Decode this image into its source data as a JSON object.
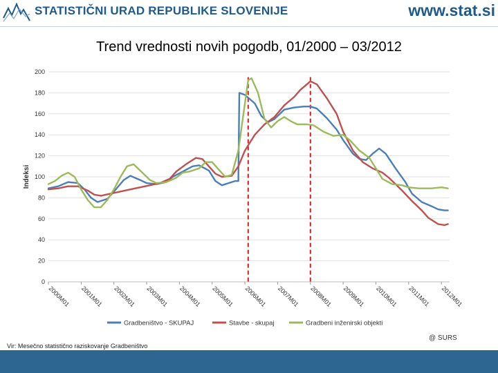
{
  "header": {
    "org_name": "STATISTIČNI URAD REPUBLIKE SLOVENIJE",
    "website": "www.stat.si",
    "logo_icon": "surs-logo-icon"
  },
  "chart_data": {
    "type": "line",
    "title": "Trend vrednosti novih pogodb, 01/2000 – 03/2012",
    "ylabel": "Indeksi",
    "xlabel": "",
    "ylim": [
      0,
      200
    ],
    "yticks": [
      0,
      20,
      40,
      60,
      80,
      100,
      120,
      140,
      160,
      180,
      200
    ],
    "x_tick_labels": [
      "2000M01",
      "2001M01",
      "2002M01",
      "2003M01",
      "2004M01",
      "2005M01",
      "2006M01",
      "2007M01",
      "2008M01",
      "2009M01",
      "2010M01",
      "2011M01",
      "2012M01"
    ],
    "x_range": [
      2000.0,
      2012.25
    ],
    "grid": true,
    "legend_position": "bottom",
    "reference_lines_x": [
      2006.1,
      2008.0
    ],
    "reference_line_color": "#d42020",
    "series": [
      {
        "name": "Gradbeništvo - SKUPAJ",
        "color": "#4a7ebb",
        "points": [
          [
            2000.0,
            89
          ],
          [
            2000.3,
            91
          ],
          [
            2000.6,
            95
          ],
          [
            2000.9,
            94
          ],
          [
            2001.1,
            88
          ],
          [
            2001.3,
            80
          ],
          [
            2001.5,
            76
          ],
          [
            2001.8,
            79
          ],
          [
            2002.0,
            86
          ],
          [
            2002.3,
            97
          ],
          [
            2002.5,
            101
          ],
          [
            2002.8,
            97
          ],
          [
            2003.0,
            94
          ],
          [
            2003.3,
            93
          ],
          [
            2003.6,
            95
          ],
          [
            2003.8,
            100
          ],
          [
            2004.1,
            105
          ],
          [
            2004.4,
            110
          ],
          [
            2004.6,
            111
          ],
          [
            2004.9,
            106
          ],
          [
            2005.1,
            96
          ],
          [
            2005.3,
            92
          ],
          [
            2005.5,
            94
          ],
          [
            2005.7,
            96
          ],
          [
            2005.8,
            96
          ],
          [
            2005.83,
            180
          ],
          [
            2006.0,
            178
          ],
          [
            2006.3,
            170
          ],
          [
            2006.5,
            158
          ],
          [
            2006.7,
            152
          ],
          [
            2006.9,
            155
          ],
          [
            2007.2,
            164
          ],
          [
            2007.5,
            166
          ],
          [
            2007.8,
            167
          ],
          [
            2008.0,
            167
          ],
          [
            2008.2,
            165
          ],
          [
            2008.5,
            156
          ],
          [
            2008.8,
            145
          ],
          [
            2009.0,
            135
          ],
          [
            2009.3,
            122
          ],
          [
            2009.5,
            117
          ],
          [
            2009.7,
            116
          ],
          [
            2009.9,
            122
          ],
          [
            2010.1,
            127
          ],
          [
            2010.3,
            122
          ],
          [
            2010.6,
            108
          ],
          [
            2010.9,
            95
          ],
          [
            2011.1,
            84
          ],
          [
            2011.4,
            76
          ],
          [
            2011.7,
            72
          ],
          [
            2011.9,
            69
          ],
          [
            2012.1,
            68
          ],
          [
            2012.2,
            68
          ]
        ]
      },
      {
        "name": "Stavbe - skupaj",
        "color": "#c0504d",
        "points": [
          [
            2000.0,
            88
          ],
          [
            2000.3,
            89
          ],
          [
            2000.6,
            91
          ],
          [
            2000.9,
            91
          ],
          [
            2001.2,
            87
          ],
          [
            2001.4,
            83
          ],
          [
            2001.6,
            82
          ],
          [
            2001.9,
            84
          ],
          [
            2002.2,
            86
          ],
          [
            2002.5,
            88
          ],
          [
            2002.8,
            90
          ],
          [
            2003.1,
            92
          ],
          [
            2003.4,
            94
          ],
          [
            2003.7,
            98
          ],
          [
            2003.9,
            105
          ],
          [
            2004.2,
            112
          ],
          [
            2004.5,
            118
          ],
          [
            2004.7,
            117
          ],
          [
            2004.9,
            110
          ],
          [
            2005.1,
            103
          ],
          [
            2005.3,
            100
          ],
          [
            2005.6,
            101
          ],
          [
            2005.8,
            110
          ],
          [
            2006.0,
            125
          ],
          [
            2006.3,
            140
          ],
          [
            2006.6,
            150
          ],
          [
            2006.9,
            157
          ],
          [
            2007.2,
            168
          ],
          [
            2007.5,
            176
          ],
          [
            2007.7,
            183
          ],
          [
            2008.0,
            191
          ],
          [
            2008.2,
            188
          ],
          [
            2008.5,
            175
          ],
          [
            2008.8,
            160
          ],
          [
            2009.0,
            143
          ],
          [
            2009.3,
            125
          ],
          [
            2009.6,
            114
          ],
          [
            2009.9,
            108
          ],
          [
            2010.2,
            104
          ],
          [
            2010.4,
            99
          ],
          [
            2010.6,
            93
          ],
          [
            2010.8,
            87
          ],
          [
            2011.1,
            77
          ],
          [
            2011.4,
            68
          ],
          [
            2011.6,
            61
          ],
          [
            2011.9,
            55
          ],
          [
            2012.1,
            54
          ],
          [
            2012.2,
            55
          ]
        ]
      },
      {
        "name": "Gradbeni inženirski objekti",
        "color": "#9bbb59",
        "points": [
          [
            2000.0,
            93
          ],
          [
            2000.2,
            96
          ],
          [
            2000.4,
            101
          ],
          [
            2000.6,
            104
          ],
          [
            2000.8,
            100
          ],
          [
            2001.0,
            88
          ],
          [
            2001.2,
            78
          ],
          [
            2001.4,
            71
          ],
          [
            2001.6,
            71
          ],
          [
            2001.8,
            78
          ],
          [
            2002.0,
            88
          ],
          [
            2002.2,
            100
          ],
          [
            2002.4,
            110
          ],
          [
            2002.6,
            112
          ],
          [
            2002.9,
            103
          ],
          [
            2003.1,
            97
          ],
          [
            2003.3,
            94
          ],
          [
            2003.6,
            95
          ],
          [
            2003.9,
            99
          ],
          [
            2004.1,
            104
          ],
          [
            2004.3,
            105
          ],
          [
            2004.6,
            108
          ],
          [
            2004.8,
            114
          ],
          [
            2005.0,
            114
          ],
          [
            2005.2,
            107
          ],
          [
            2005.4,
            100
          ],
          [
            2005.6,
            102
          ],
          [
            2005.8,
            125
          ],
          [
            2006.0,
            170
          ],
          [
            2006.1,
            192
          ],
          [
            2006.2,
            194
          ],
          [
            2006.4,
            180
          ],
          [
            2006.6,
            155
          ],
          [
            2006.8,
            147
          ],
          [
            2007.0,
            153
          ],
          [
            2007.2,
            157
          ],
          [
            2007.4,
            153
          ],
          [
            2007.6,
            150
          ],
          [
            2007.9,
            150
          ],
          [
            2008.1,
            149
          ],
          [
            2008.4,
            143
          ],
          [
            2008.7,
            139
          ],
          [
            2009.0,
            140
          ],
          [
            2009.2,
            135
          ],
          [
            2009.5,
            125
          ],
          [
            2009.8,
            118
          ],
          [
            2010.0,
            108
          ],
          [
            2010.2,
            98
          ],
          [
            2010.5,
            93
          ],
          [
            2010.8,
            92
          ],
          [
            2011.0,
            90
          ],
          [
            2011.3,
            89
          ],
          [
            2011.7,
            89
          ],
          [
            2012.0,
            90
          ],
          [
            2012.2,
            89
          ]
        ]
      }
    ]
  },
  "footer": {
    "copyright": "@ SURS",
    "source": "Vir: Mesečno statistično raziskovanje Gradbeništvo"
  }
}
